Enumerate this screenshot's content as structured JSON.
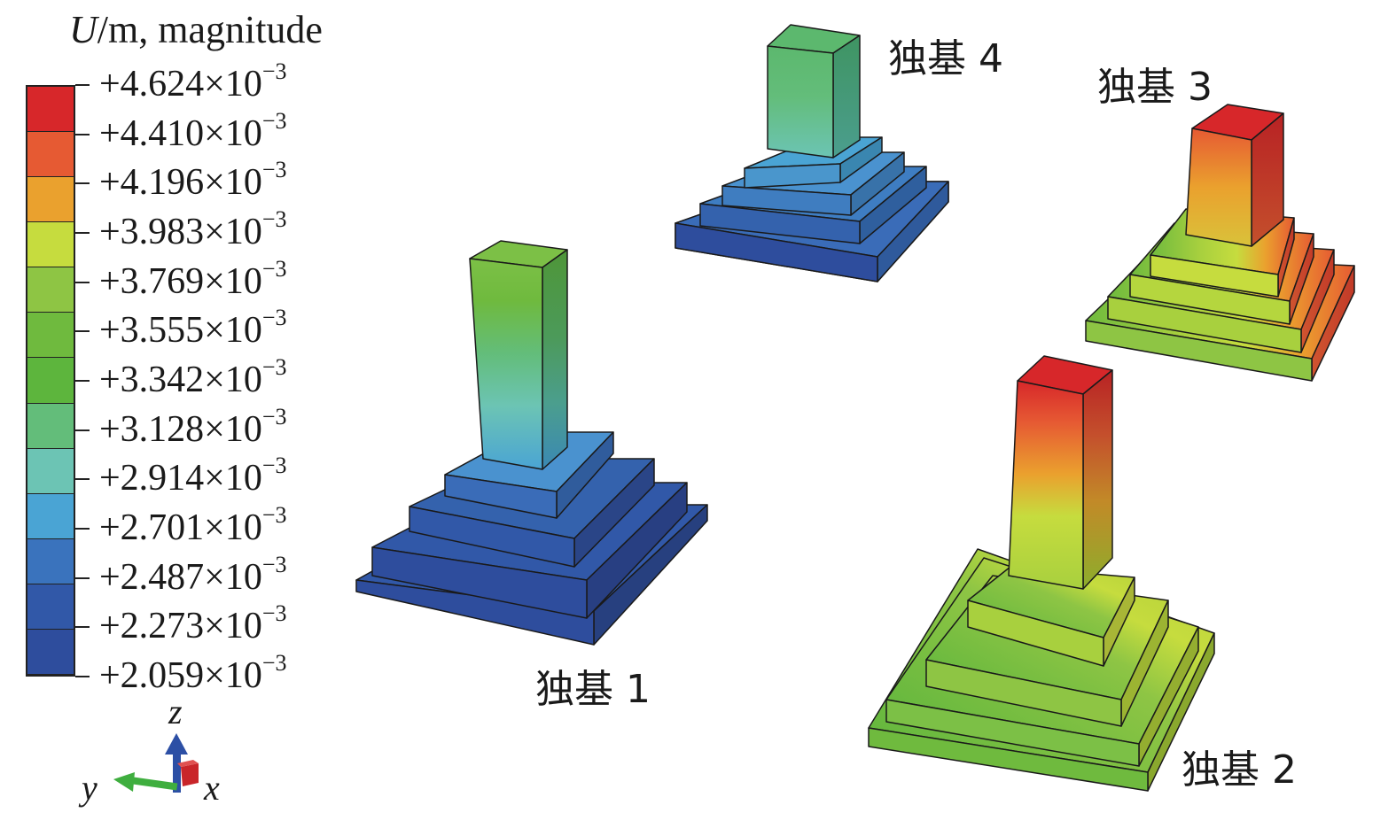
{
  "legend": {
    "title_var": "U",
    "title_rest": "/m, magnitude",
    "labels": [
      {
        "base": "+4.624×10",
        "exp": "−3"
      },
      {
        "base": "+4.410×10",
        "exp": "−3"
      },
      {
        "base": "+4.196×10",
        "exp": "−3"
      },
      {
        "base": "+3.983×10",
        "exp": "−3"
      },
      {
        "base": "+3.769×10",
        "exp": "−3"
      },
      {
        "base": "+3.555×10",
        "exp": "−3"
      },
      {
        "base": "+3.342×10",
        "exp": "−3"
      },
      {
        "base": "+3.128×10",
        "exp": "−3"
      },
      {
        "base": "+2.914×10",
        "exp": "−3"
      },
      {
        "base": "+2.701×10",
        "exp": "−3"
      },
      {
        "base": "+2.487×10",
        "exp": "−3"
      },
      {
        "base": "+2.273×10",
        "exp": "−3"
      },
      {
        "base": "+2.059×10",
        "exp": "−3"
      }
    ],
    "colors": [
      "#d7272a",
      "#e65a33",
      "#eaa12e",
      "#c6dc3e",
      "#8ec544",
      "#6fba3e",
      "#5db53d",
      "#63bd7a",
      "#6cc4b4",
      "#4aa4d4",
      "#3a73bd",
      "#3158a8",
      "#2e4d9d"
    ]
  },
  "footings": {
    "f1": "独基 1",
    "f2": "独基 2",
    "f3": "独基 3",
    "f4": "独基 4"
  },
  "axes": {
    "z": "z",
    "y": "y",
    "x": "x"
  }
}
